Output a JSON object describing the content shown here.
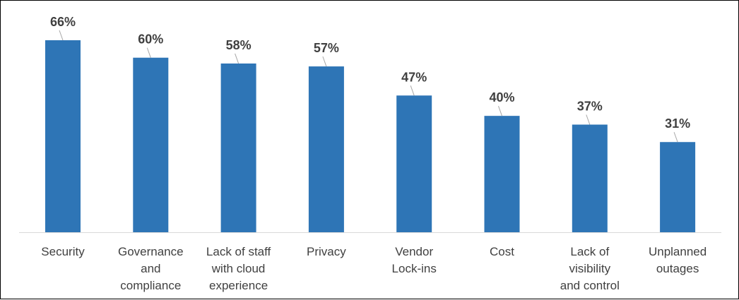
{
  "chart_data": {
    "type": "bar",
    "title": "",
    "xlabel": "",
    "ylabel": "",
    "ylim": [
      0,
      70
    ],
    "grid": false,
    "legend": "none",
    "bar_color": "#2E75B6",
    "label_color": "#404040",
    "axis_color": "#D9D9D9",
    "categories": [
      [
        "Security"
      ],
      [
        "Governance",
        "and",
        "compliance"
      ],
      [
        "Lack of staff",
        "with cloud",
        "experience"
      ],
      [
        "Privacy"
      ],
      [
        "Vendor",
        "Lock-ins"
      ],
      [
        "Cost"
      ],
      [
        "Lack of",
        "visibility",
        "and control"
      ],
      [
        "Unplanned",
        "outages"
      ]
    ],
    "values": [
      66,
      60,
      58,
      57,
      47,
      40,
      37,
      31
    ],
    "value_labels": [
      "66%",
      "60%",
      "58%",
      "57%",
      "47%",
      "40%",
      "37%",
      "31%"
    ]
  }
}
